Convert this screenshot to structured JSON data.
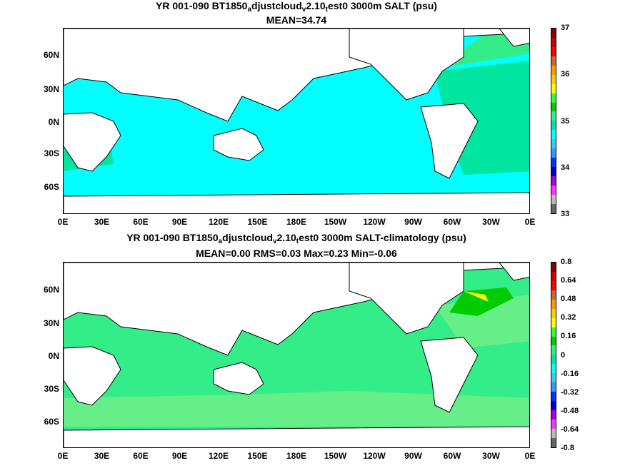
{
  "panel1": {
    "title_parts": [
      "YR 001-090 BT1850",
      "a",
      "djustcloud",
      "v",
      "2.10",
      "t",
      "est0 3000m SALT (psu)"
    ],
    "subtitle": "MEAN=34.74",
    "colorbar_labels": [
      "37",
      "36",
      "35",
      "34",
      "33"
    ],
    "colorbar_colors": [
      "#666666",
      "#bbbbbb",
      "#ff33ff",
      "#aa00dd",
      "#0000cc",
      "#0033ff",
      "#3399ff",
      "#33ccff",
      "#00ffff",
      "#00e5a0",
      "#33ee88",
      "#00cc00",
      "#33ff33",
      "#ffff00",
      "#ffcc00",
      "#ff9900",
      "#cc6633",
      "#ff0000",
      "#cc0000",
      "#880000"
    ]
  },
  "panel2": {
    "title_parts": [
      "YR 001-090 BT1850",
      "a",
      "djustcloud",
      "v",
      "2.10",
      "t",
      "est0 3000m SALT-climatology (psu)"
    ],
    "subtitle": "MEAN=0.00   RMS=0.03   Max=0.23   Min=-0.06",
    "colorbar_labels": [
      "0.8",
      "0.64",
      "0.48",
      "0.32",
      "0.16",
      "0",
      "-0.16",
      "-0.32",
      "-0.48",
      "-0.64",
      "-0.8"
    ],
    "colorbar_colors": [
      "#666666",
      "#bbbbbb",
      "#ff33ff",
      "#aa00dd",
      "#0000cc",
      "#0033ff",
      "#3399ff",
      "#33ccff",
      "#00ffff",
      "#00e5a0",
      "#33ee88",
      "#00cc00",
      "#33ff33",
      "#ffff00",
      "#ffcc00",
      "#ff9900",
      "#cc6633",
      "#ff0000",
      "#cc0000",
      "#880000"
    ]
  },
  "axes": {
    "lat_labels": [
      "60N",
      "30N",
      "0N",
      "30S",
      "60S"
    ],
    "lon_labels": [
      "0E",
      "30E",
      "60E",
      "90E",
      "120E",
      "150E",
      "180E",
      "150W",
      "120W",
      "90W",
      "60W",
      "30W",
      "0E"
    ]
  },
  "colors": {
    "panel1_ocean": "#00ffff",
    "panel1_ocean_alt": "#00e5a0",
    "panel2_ocean": "#33ee88",
    "panel2_ocean_alt": "#66ee88",
    "land": "#ffffff",
    "coast": "#000000"
  }
}
